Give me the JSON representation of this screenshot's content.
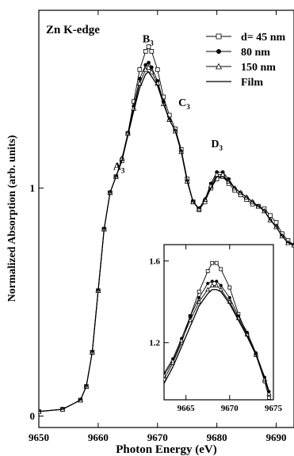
{
  "chart_data": [
    {
      "type": "line",
      "title": "Zn K-edge",
      "xlabel": "Photon Energy (eV)",
      "ylabel": "Normalized Absorption (arb. units)",
      "xlim": [
        9650,
        9693
      ],
      "ylim": [
        -0.05,
        1.78
      ],
      "xticks": [
        "9650",
        "9660",
        "9670",
        "9680",
        "9690"
      ],
      "yticks": [
        "0",
        "1"
      ],
      "legend_position": "top-right",
      "annotations": [
        {
          "text": "A",
          "sub": "3",
          "x": 9663.5,
          "y": 1.08
        },
        {
          "text": "B",
          "sub": "3",
          "x": 9668.4,
          "y": 1.64
        },
        {
          "text": "C",
          "sub": "3",
          "x": 9674.5,
          "y": 1.36
        },
        {
          "text": "D",
          "sub": "3",
          "x": 9680.0,
          "y": 1.18
        }
      ],
      "series": [
        {
          "name": "d= 45 nm",
          "marker": "open-square",
          "x": [
            9650,
            9654,
            9657,
            9658,
            9659,
            9660,
            9661,
            9662,
            9663,
            9664,
            9665,
            9666,
            9667,
            9668,
            9668.5,
            9669,
            9670,
            9671,
            9672,
            9673,
            9674,
            9675,
            9676,
            9677,
            9678,
            9679,
            9680,
            9681,
            9682,
            9683,
            9684,
            9685,
            9686,
            9687,
            9688,
            9689,
            9690,
            9691,
            9692,
            9693
          ],
          "values": [
            0.02,
            0.03,
            0.07,
            0.13,
            0.28,
            0.55,
            0.82,
            0.98,
            1.05,
            1.12,
            1.24,
            1.38,
            1.52,
            1.6,
            1.62,
            1.6,
            1.52,
            1.4,
            1.32,
            1.26,
            1.17,
            1.04,
            0.94,
            0.905,
            0.94,
            1.0,
            1.04,
            1.05,
            1.02,
            0.99,
            0.97,
            0.95,
            0.93,
            0.92,
            0.91,
            0.88,
            0.85,
            0.8,
            0.77,
            0.75
          ]
        },
        {
          "name": "80 nm",
          "marker": "filled-circle",
          "x": [
            9650,
            9654,
            9657,
            9658,
            9659,
            9660,
            9661,
            9662,
            9663,
            9664,
            9665,
            9666,
            9667,
            9668,
            9668.5,
            9669,
            9670,
            9671,
            9672,
            9673,
            9674,
            9675,
            9676,
            9677,
            9678,
            9679,
            9680,
            9681,
            9682,
            9683,
            9684,
            9685,
            9686,
            9687,
            9688,
            9689,
            9690,
            9691,
            9692,
            9693
          ],
          "values": [
            0.02,
            0.03,
            0.07,
            0.13,
            0.28,
            0.55,
            0.82,
            0.98,
            1.05,
            1.13,
            1.24,
            1.36,
            1.48,
            1.54,
            1.55,
            1.53,
            1.47,
            1.38,
            1.3,
            1.25,
            1.16,
            1.03,
            0.94,
            0.91,
            0.95,
            1.02,
            1.07,
            1.07,
            1.04,
            1.0,
            0.98,
            0.96,
            0.94,
            0.92,
            0.9,
            0.86,
            0.83,
            0.79,
            0.76,
            0.75
          ]
        },
        {
          "name": "150 nm",
          "marker": "open-triangle",
          "x": [
            9650,
            9654,
            9657,
            9658,
            9659,
            9660,
            9661,
            9662,
            9663,
            9664,
            9665,
            9666,
            9667,
            9668,
            9668.5,
            9669,
            9670,
            9671,
            9672,
            9673,
            9674,
            9675,
            9676,
            9677,
            9678,
            9679,
            9680,
            9681,
            9682,
            9683,
            9684,
            9685,
            9686,
            9687,
            9688,
            9689,
            9690,
            9691,
            9692,
            9693
          ],
          "values": [
            0.02,
            0.03,
            0.07,
            0.13,
            0.28,
            0.55,
            0.82,
            0.98,
            1.05,
            1.13,
            1.24,
            1.35,
            1.46,
            1.52,
            1.53,
            1.51,
            1.46,
            1.37,
            1.3,
            1.25,
            1.16,
            1.03,
            0.94,
            0.91,
            0.95,
            1.01,
            1.06,
            1.06,
            1.03,
            1.0,
            0.98,
            0.96,
            0.94,
            0.92,
            0.9,
            0.86,
            0.83,
            0.79,
            0.76,
            0.75
          ]
        },
        {
          "name": "Film",
          "marker": "none",
          "x": [
            9650,
            9654,
            9657,
            9658,
            9659,
            9660,
            9661,
            9662,
            9663,
            9664,
            9665,
            9666,
            9667,
            9668,
            9668.5,
            9669,
            9670,
            9671,
            9672,
            9673,
            9674,
            9675,
            9676,
            9677,
            9678,
            9679,
            9680,
            9681,
            9682,
            9683,
            9684,
            9685,
            9686,
            9687,
            9688,
            9689,
            9690,
            9691,
            9692,
            9693
          ],
          "values": [
            0.02,
            0.03,
            0.07,
            0.13,
            0.28,
            0.55,
            0.82,
            0.98,
            1.05,
            1.12,
            1.23,
            1.34,
            1.44,
            1.5,
            1.51,
            1.49,
            1.45,
            1.37,
            1.3,
            1.25,
            1.16,
            1.03,
            0.94,
            0.91,
            0.95,
            1.0,
            1.05,
            1.05,
            1.03,
            1.0,
            0.98,
            0.96,
            0.94,
            0.92,
            0.9,
            0.86,
            0.83,
            0.79,
            0.76,
            0.75
          ]
        }
      ]
    },
    {
      "type": "line",
      "inset": true,
      "xlim": [
        9662.5,
        9675
      ],
      "ylim": [
        0.92,
        1.68
      ],
      "xticks": [
        "9665",
        "9670",
        "9675"
      ],
      "yticks": [
        "1.6",
        "1.2"
      ],
      "series": [
        {
          "name": "d= 45 nm",
          "marker": "open-square",
          "x": [
            9662.5,
            9663.5,
            9664.5,
            9665.5,
            9666.5,
            9667.5,
            9668,
            9668.5,
            9669,
            9670,
            9671,
            9672,
            9673,
            9674,
            9674.5
          ],
          "values": [
            1.02,
            1.1,
            1.2,
            1.33,
            1.45,
            1.55,
            1.59,
            1.59,
            1.56,
            1.47,
            1.34,
            1.24,
            1.14,
            1.01,
            0.93
          ]
        },
        {
          "name": "80 nm",
          "marker": "filled-circle",
          "x": [
            9662.5,
            9663.5,
            9664.5,
            9665.5,
            9666.5,
            9667.5,
            9668,
            9668.5,
            9669,
            9670,
            9671,
            9672,
            9673,
            9674,
            9674.5
          ],
          "values": [
            1.05,
            1.12,
            1.22,
            1.33,
            1.42,
            1.49,
            1.5,
            1.5,
            1.48,
            1.42,
            1.33,
            1.25,
            1.15,
            1.03,
            0.96
          ]
        },
        {
          "name": "150 nm",
          "marker": "open-triangle",
          "x": [
            9662.5,
            9663.5,
            9664.5,
            9665.5,
            9666.5,
            9667.5,
            9668,
            9668.5,
            9669,
            9670,
            9671,
            9672,
            9673,
            9674,
            9674.5
          ],
          "values": [
            1.04,
            1.11,
            1.21,
            1.31,
            1.4,
            1.46,
            1.48,
            1.48,
            1.46,
            1.4,
            1.32,
            1.24,
            1.14,
            1.02,
            0.95
          ]
        },
        {
          "name": "Film",
          "marker": "none",
          "x": [
            9662.5,
            9663.5,
            9664.5,
            9665.5,
            9666.5,
            9667.5,
            9668,
            9668.5,
            9669,
            9670,
            9671,
            9672,
            9673,
            9674,
            9674.5
          ],
          "values": [
            1.0,
            1.08,
            1.18,
            1.28,
            1.38,
            1.44,
            1.46,
            1.46,
            1.45,
            1.39,
            1.31,
            1.23,
            1.14,
            1.03,
            0.96
          ]
        }
      ]
    }
  ]
}
